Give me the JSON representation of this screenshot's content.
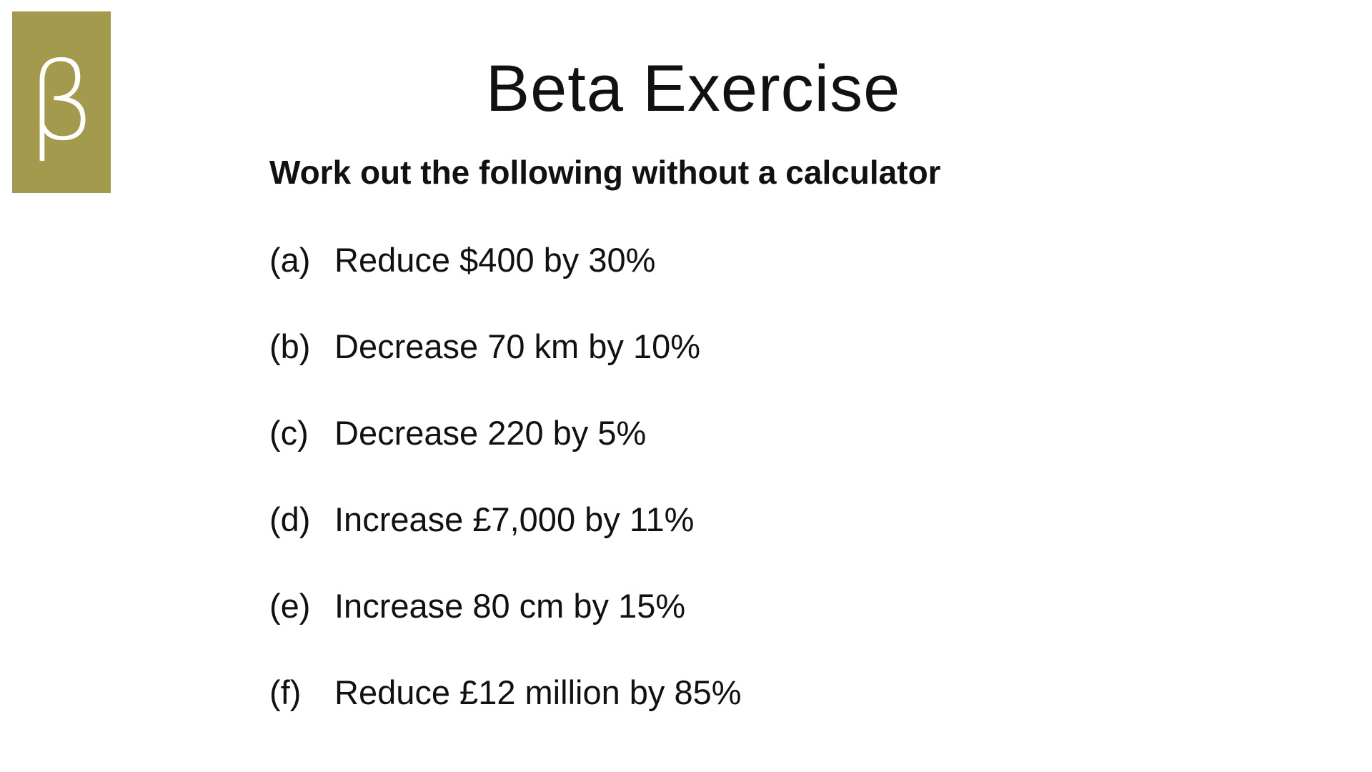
{
  "logo": {
    "text": "β",
    "color": "#a39a4e"
  },
  "title": "Beta Exercise",
  "subtitle": "Work out the following without a calculator",
  "questions": [
    {
      "label": "(a)",
      "text": "Reduce $400 by 30%"
    },
    {
      "label": "(b)",
      "text": "Decrease 70 km by 10%"
    },
    {
      "label": "(c)",
      "text": "Decrease 220 by 5%"
    },
    {
      "label": "(d)",
      "text": "Increase £7,000 by 11%"
    },
    {
      "label": "(e)",
      "text": "Increase 80 cm by 15%"
    },
    {
      "label": "(f)",
      "text": "Reduce £12 million by 85%"
    }
  ]
}
